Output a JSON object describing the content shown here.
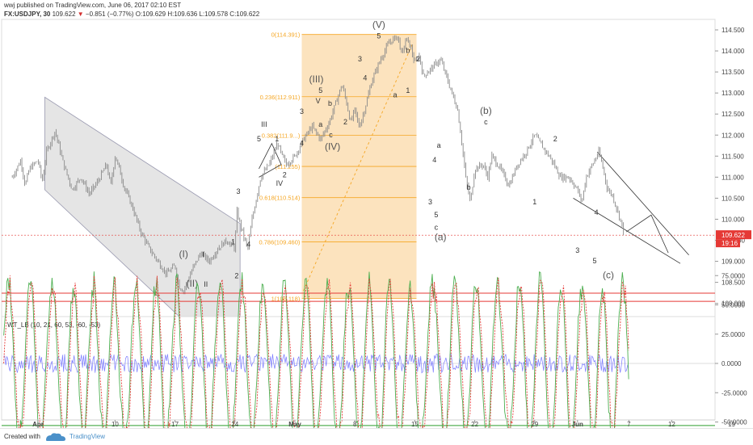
{
  "header": {
    "line1": "wwj published on TradingView.com, June 06, 2017 02:10 EST",
    "symbol": "FX:USDJPY, 30",
    "last": "109.622",
    "change_arrow": "▼",
    "change": "−0.851 (−0.77%)",
    "ohlc": "O:109.629 H:109.636 L:109.578 C:109.622"
  },
  "colors": {
    "candle": "#8a8a8a",
    "channel_fill": "#cfcfcf",
    "fib_fill": "#fbd9a8",
    "fib_text": "#f5a623",
    "price_tag": "#e53935",
    "wt_line1": "#4caf50",
    "wt_line2": "#e53935",
    "wt_blue": "#7b7bff",
    "wt_upper": "#e53935",
    "wt_lower": "#2e9e2e"
  },
  "chart_data": [
    {
      "type": "line",
      "description_series": "USDJPY 30-minute price (close, approximated)",
      "ylim": [
        107.8,
        114.7
      ],
      "y_ticks": [
        "114.500",
        "114.000",
        "113.500",
        "113.000",
        "112.500",
        "112.000",
        "111.500",
        "111.000",
        "110.500",
        "110.000",
        "109.500",
        "109.000",
        "108.500",
        "108.000"
      ],
      "y_tick_values": [
        114.5,
        114.0,
        113.5,
        113.0,
        112.5,
        112.0,
        111.5,
        111.0,
        110.5,
        110.0,
        109.5,
        109.0,
        108.5,
        108.0
      ],
      "x_ticks": [
        "Apr",
        "10",
        "17",
        "24",
        "May",
        "8",
        "15",
        "22",
        "29",
        "Jun",
        "7",
        "12",
        "19"
      ],
      "x_tick_values": [
        0,
        9,
        16,
        23,
        30,
        37,
        44,
        51,
        58,
        63,
        69,
        74,
        81
      ],
      "price_path": [
        [
          -3,
          111.0
        ],
        [
          -2,
          111.4
        ],
        [
          -1.5,
          110.8
        ],
        [
          -1,
          111.2
        ],
        [
          0,
          111.4
        ],
        [
          0.5,
          110.9
        ],
        [
          1,
          111.6
        ],
        [
          2,
          112.1
        ],
        [
          2.5,
          111.7
        ],
        [
          3,
          111.3
        ],
        [
          3.5,
          111.0
        ],
        [
          4,
          110.7
        ],
        [
          5,
          111.0
        ],
        [
          6,
          110.6
        ],
        [
          7,
          110.9
        ],
        [
          8,
          111.3
        ],
        [
          8.5,
          110.8
        ],
        [
          9,
          111.5
        ],
        [
          9.5,
          111.2
        ],
        [
          10,
          110.8
        ],
        [
          11,
          110.3
        ],
        [
          12,
          109.7
        ],
        [
          13,
          109.3
        ],
        [
          14,
          109.0
        ],
        [
          15,
          108.7
        ],
        [
          16,
          108.9
        ],
        [
          16.5,
          108.4
        ],
        [
          17,
          108.3
        ],
        [
          18,
          108.8
        ],
        [
          19,
          109.2
        ],
        [
          20,
          109.0
        ],
        [
          21,
          109.3
        ],
        [
          22,
          109.5
        ],
        [
          23,
          109.3
        ],
        [
          23.2,
          110.2
        ],
        [
          24,
          109.6
        ],
        [
          24.5,
          109.3
        ],
        [
          25,
          110.0
        ],
        [
          26,
          111.0
        ],
        [
          27,
          111.3
        ],
        [
          28,
          111.8
        ],
        [
          28.5,
          111.5
        ],
        [
          29,
          111.3
        ],
        [
          30,
          111.5
        ],
        [
          30.5,
          111.7
        ],
        [
          31,
          111.9
        ],
        [
          32,
          112.2
        ],
        [
          33,
          111.9
        ],
        [
          34,
          112.3
        ],
        [
          35,
          112.9
        ],
        [
          35.5,
          113.2
        ],
        [
          36,
          112.8
        ],
        [
          36.5,
          112.3
        ],
        [
          37,
          112.6
        ],
        [
          37.5,
          112.2
        ],
        [
          38,
          112.5
        ],
        [
          39,
          113.3
        ],
        [
          40,
          113.8
        ],
        [
          41,
          114.2
        ],
        [
          42,
          114.35
        ],
        [
          42.5,
          113.9
        ],
        [
          43,
          114.3
        ],
        [
          43.5,
          114.1
        ],
        [
          44,
          113.7
        ],
        [
          44.5,
          113.9
        ],
        [
          45,
          113.4
        ],
        [
          46,
          113.6
        ],
        [
          47,
          113.8
        ],
        [
          48,
          113.2
        ],
        [
          49,
          112.6
        ],
        [
          49.5,
          111.8
        ],
        [
          50,
          110.9
        ],
        [
          50.5,
          110.4
        ],
        [
          51,
          111.2
        ],
        [
          52,
          111.3
        ],
        [
          52.5,
          111.0
        ],
        [
          53,
          111.5
        ],
        [
          54,
          111.2
        ],
        [
          55,
          110.8
        ],
        [
          56,
          111.3
        ],
        [
          57,
          111.6
        ],
        [
          58,
          112.0
        ],
        [
          59,
          111.7
        ],
        [
          60,
          111.4
        ],
        [
          61,
          111.0
        ],
        [
          62,
          111.0
        ],
        [
          63,
          110.7
        ],
        [
          63.5,
          110.4
        ],
        [
          64,
          111.0
        ],
        [
          65,
          111.4
        ],
        [
          65.5,
          111.6
        ],
        [
          66,
          111.2
        ],
        [
          66.5,
          110.7
        ],
        [
          67,
          110.6
        ],
        [
          67.5,
          110.3
        ],
        [
          68,
          110.0
        ],
        [
          68.5,
          109.6
        ]
      ],
      "last_price": "109.622",
      "countdown": "19:16"
    },
    {
      "type": "line",
      "indicator_label": "WT_LB (10, 21, 60, 53, -60, -53)",
      "ylim": [
        -85,
        85
      ],
      "y_ticks": [
        "75.0000",
        "50.0000",
        "25.0000",
        "0.0000",
        "-25.0000",
        "-50.0000",
        "-75.0000"
      ],
      "y_tick_values": [
        75,
        50,
        25,
        0,
        -25,
        -50,
        -75
      ],
      "levels": [
        60,
        53,
        -53,
        -60
      ]
    }
  ],
  "fibonacci": [
    {
      "label": "0(114.391)"
    },
    {
      "label": "0.236(112.911)"
    },
    {
      "label": "0.382(111.9...)"
    },
    {
      "label": "(111.255)"
    },
    {
      "label": "0.618(110.514)"
    },
    {
      "label": "0.786(109.460)"
    },
    {
      "label": "1(108.118)"
    }
  ],
  "annotations": [
    {
      "text": "(I)",
      "size": "big"
    },
    {
      "text": "(II)",
      "size": "big"
    },
    {
      "text": "I",
      "size": "small"
    },
    {
      "text": "II",
      "size": "small"
    },
    {
      "text": "1",
      "size": "small"
    },
    {
      "text": "2",
      "size": "small"
    },
    {
      "text": "3",
      "size": "small"
    },
    {
      "text": "4",
      "size": "small"
    },
    {
      "text": "III",
      "size": "small"
    },
    {
      "text": "5",
      "size": "small"
    },
    {
      "text": "1",
      "size": "small"
    },
    {
      "text": "IV",
      "size": "small"
    },
    {
      "text": "2",
      "size": "small"
    },
    {
      "text": "3",
      "size": "small"
    },
    {
      "text": "4",
      "size": "small"
    },
    {
      "text": "(III)",
      "size": "big"
    },
    {
      "text": "V",
      "size": "small"
    },
    {
      "text": "5",
      "size": "small"
    },
    {
      "text": "a",
      "size": "small"
    },
    {
      "text": "b",
      "size": "small"
    },
    {
      "text": "c",
      "size": "small"
    },
    {
      "text": "2",
      "size": "small"
    },
    {
      "text": "(IV)",
      "size": "big"
    },
    {
      "text": "3",
      "size": "small"
    },
    {
      "text": "(V)",
      "size": "big"
    },
    {
      "text": "5",
      "size": "small"
    },
    {
      "text": "4",
      "size": "small"
    },
    {
      "text": "b",
      "size": "small"
    },
    {
      "text": "2",
      "size": "small"
    },
    {
      "text": "a",
      "size": "small"
    },
    {
      "text": "1",
      "size": "small"
    },
    {
      "text": "a",
      "size": "small"
    },
    {
      "text": "4",
      "size": "small"
    },
    {
      "text": "3",
      "size": "small"
    },
    {
      "text": "5",
      "size": "small"
    },
    {
      "text": "c",
      "size": "small"
    },
    {
      "text": "(a)",
      "size": "big"
    },
    {
      "text": "b",
      "size": "small"
    },
    {
      "text": "(b)",
      "size": "big"
    },
    {
      "text": "c",
      "size": "small"
    },
    {
      "text": "2",
      "size": "small"
    },
    {
      "text": "1",
      "size": "small"
    },
    {
      "text": "4",
      "size": "small"
    },
    {
      "text": "3",
      "size": "small"
    },
    {
      "text": "5",
      "size": "small"
    },
    {
      "text": "(c)",
      "size": "big"
    }
  ],
  "footer": {
    "created_with": "Created with",
    "brand": "TradingView"
  }
}
